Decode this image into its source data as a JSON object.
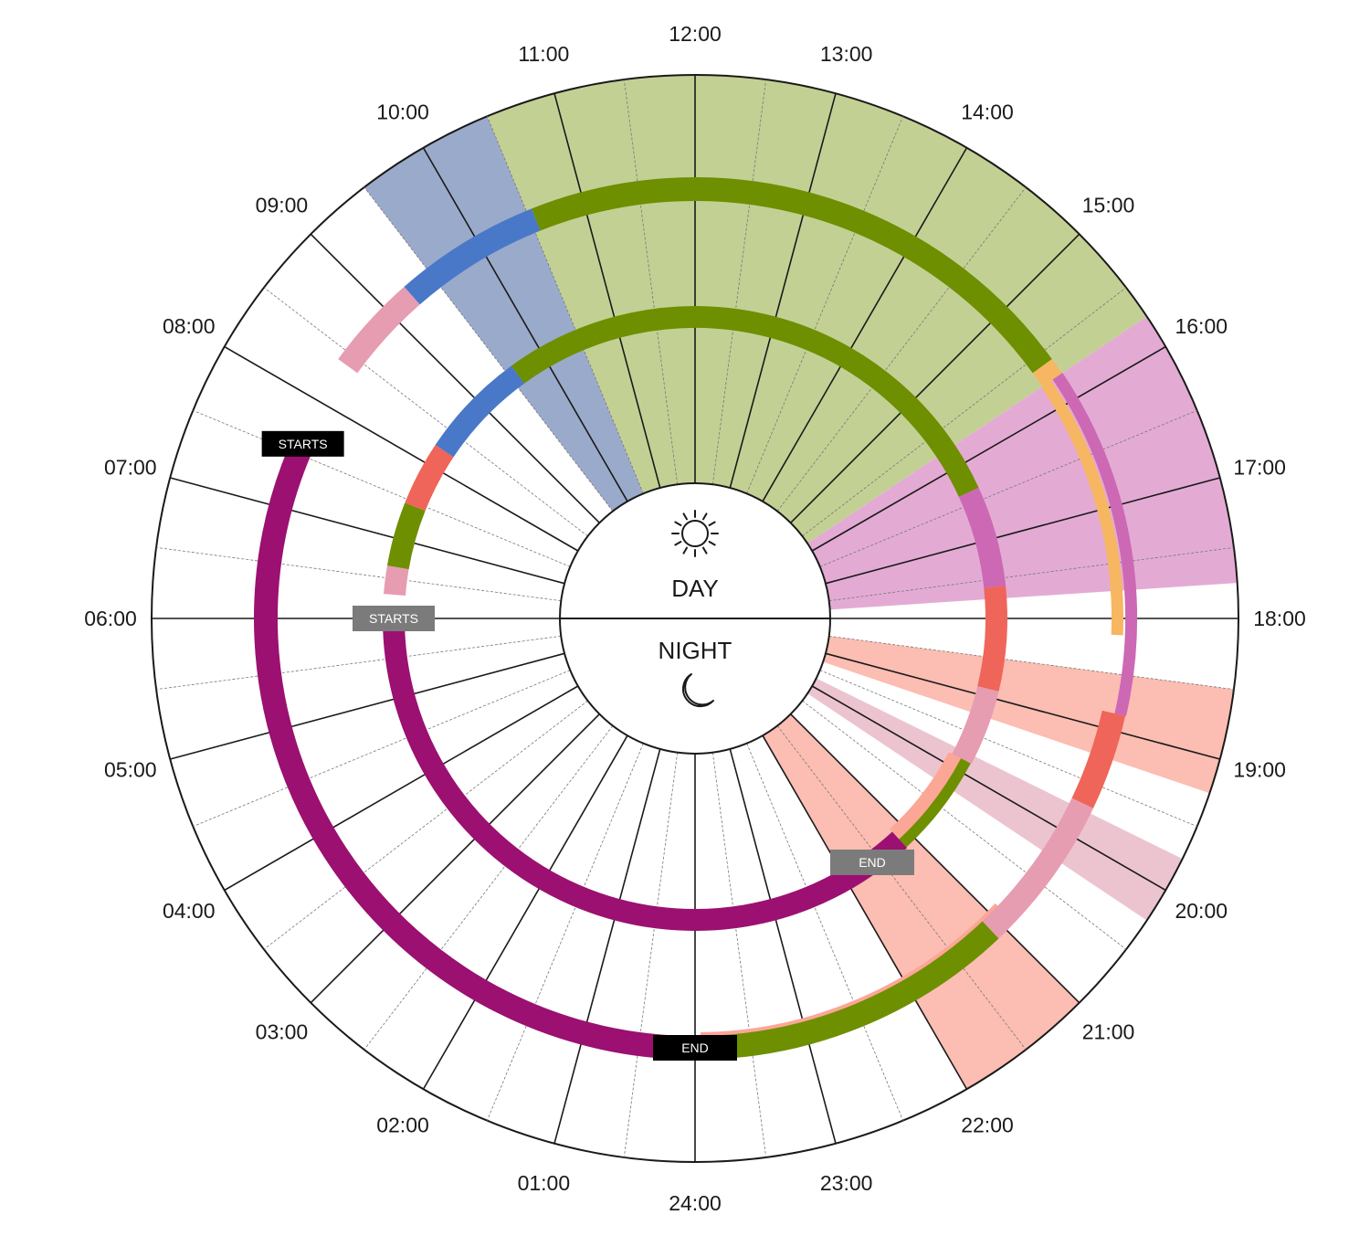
{
  "hours": [
    "24:00",
    "01:00",
    "02:00",
    "03:00",
    "04:00",
    "05:00",
    "06:00",
    "07:00",
    "08:00",
    "09:00",
    "10:00",
    "11:00",
    "12:00",
    "13:00",
    "14:00",
    "15:00",
    "16:00",
    "17:00",
    "18:00",
    "19:00",
    "20:00",
    "21:00",
    "22:00",
    "23:00"
  ],
  "center": {
    "day": "DAY",
    "night": "NIGHT",
    "day_icon": "sun-icon",
    "night_icon": "moon-icon"
  },
  "colors": {
    "green": "#6e8f00",
    "green_light": "#c3d094",
    "blue": "#4a78c8",
    "blue_light": "#9aaaca",
    "magenta": "#9b1070",
    "pink": "#e69cb1",
    "pink_light": "#ecc4d0",
    "orchid": "#cd68b4",
    "orchid_light": "#e3abd4",
    "coral": "#f0655a",
    "salmon": "#fca696",
    "salmon_light": "#fcbdb2",
    "orange": "#f7b662",
    "line": "#1a1a1a",
    "tag_black": "#000000",
    "tag_gray": "#7b7b7b"
  },
  "sectors": [
    {
      "from": 9.5,
      "to": 10.5,
      "color": "blue_light"
    },
    {
      "from": 10.5,
      "to": 15.75,
      "color": "green_light"
    },
    {
      "from": 15.75,
      "to": 17.75,
      "color": "orchid_light"
    },
    {
      "from": 18.5,
      "to": 19.25,
      "color": "salmon_light"
    },
    {
      "from": 19.75,
      "to": 20.25,
      "color": "pink_light"
    },
    {
      "from": 21.0,
      "to": 22.0,
      "color": "salmon_light"
    }
  ],
  "outer_ring": [
    {
      "from": 8.4,
      "to": 9.25,
      "color": "pink"
    },
    {
      "from": 9.25,
      "to": 10.55,
      "color": "blue"
    },
    {
      "from": 10.55,
      "to": 15.6,
      "color": "green"
    },
    {
      "from": 15.6,
      "to": 15.75,
      "color": "orange"
    },
    {
      "from": 15.75,
      "to": 18.85,
      "color": "orchid",
      "width": "half"
    },
    {
      "from": 15.75,
      "to": 18.15,
      "color": "orange",
      "width": "half"
    },
    {
      "from": 18.85,
      "to": 19.7,
      "color": "coral"
    },
    {
      "from": 19.7,
      "to": 21.1,
      "color": "pink"
    },
    {
      "from": 21.1,
      "to": 23.95,
      "color": "green"
    },
    {
      "from": 20.9,
      "to": 23.95,
      "color": "salmon",
      "width": "sub"
    },
    {
      "from": 24.0,
      "to": 31.6,
      "color": "magenta"
    }
  ],
  "inner_ring": [
    {
      "from": 6.3,
      "to": 6.65,
      "color": "pink"
    },
    {
      "from": 6.65,
      "to": 7.45,
      "color": "green"
    },
    {
      "from": 7.45,
      "to": 8.25,
      "color": "coral"
    },
    {
      "from": 8.25,
      "to": 9.6,
      "color": "blue"
    },
    {
      "from": 9.6,
      "to": 16.35,
      "color": "green"
    },
    {
      "from": 16.35,
      "to": 17.6,
      "color": "orchid"
    },
    {
      "from": 17.6,
      "to": 18.9,
      "color": "coral"
    },
    {
      "from": 18.9,
      "to": 19.85,
      "color": "pink"
    },
    {
      "from": 19.85,
      "to": 21.15,
      "color": "green"
    },
    {
      "from": 19.85,
      "to": 21.15,
      "color": "salmon",
      "width": "sub"
    },
    {
      "from": 21.15,
      "to": 30.0,
      "color": "magenta"
    }
  ],
  "tags": [
    {
      "text": "STARTS",
      "ring": "outer",
      "hour": 7.6,
      "color": "tag_black"
    },
    {
      "text": "END",
      "ring": "outer",
      "hour": 0.0,
      "color": "tag_black"
    },
    {
      "text": "STARTS",
      "ring": "inner",
      "hour": 6.0,
      "color": "tag_gray"
    },
    {
      "text": "END",
      "ring": "inner",
      "hour": 21.6,
      "color": "tag_gray"
    }
  ]
}
